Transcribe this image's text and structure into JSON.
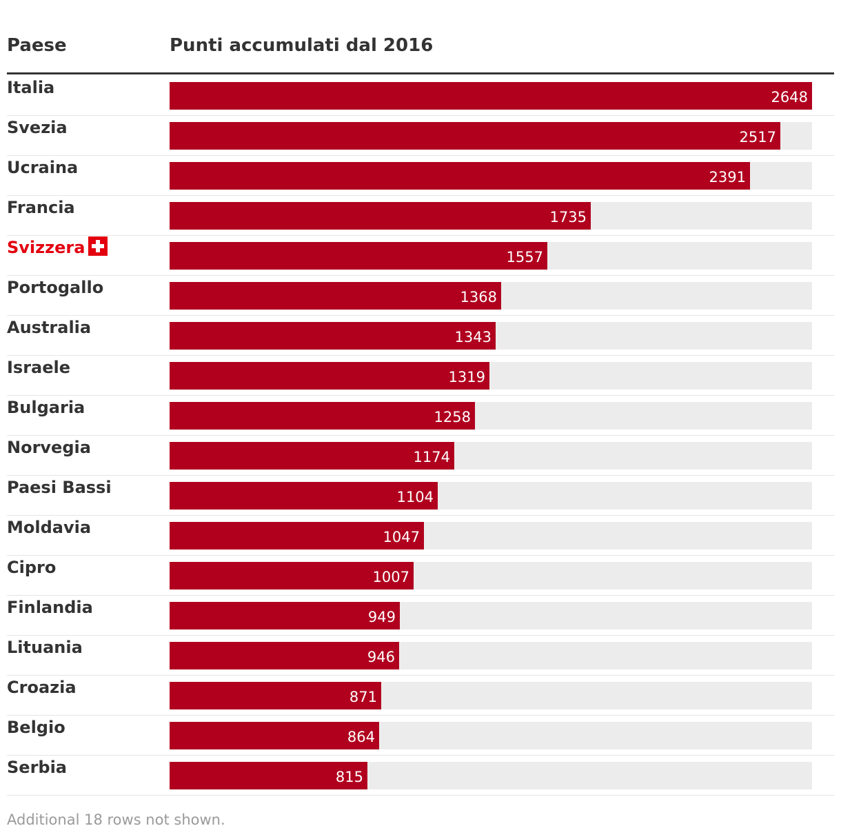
{
  "chart_data": {
    "type": "bar",
    "orientation": "horizontal",
    "columns": {
      "country": "Paese",
      "value": "Punti accumulati dal 2016"
    },
    "xlim": [
      0,
      2648
    ],
    "bar_color": "#b0001e",
    "track_color": "#ececec",
    "highlight_color": "#e3000f",
    "rows": [
      {
        "country": "Italia",
        "value": 2648,
        "label": "2648"
      },
      {
        "country": "Svezia",
        "value": 2517,
        "label": "2517"
      },
      {
        "country": "Ucraina",
        "value": 2391,
        "label": "2391"
      },
      {
        "country": "Francia",
        "value": 1735,
        "label": "1735"
      },
      {
        "country": "Svizzera",
        "value": 1557,
        "label": "1557",
        "highlight": true,
        "icon": "swiss-flag-icon"
      },
      {
        "country": "Portogallo",
        "value": 1368,
        "label": "1368"
      },
      {
        "country": "Australia",
        "value": 1343,
        "label": "1343"
      },
      {
        "country": "Israele",
        "value": 1319,
        "label": "1319"
      },
      {
        "country": "Bulgaria",
        "value": 1258,
        "label": "1258"
      },
      {
        "country": "Norvegia",
        "value": 1174,
        "label": "1174"
      },
      {
        "country": "Paesi Bassi",
        "value": 1104,
        "label": "1104"
      },
      {
        "country": "Moldavia",
        "value": 1047,
        "label": "1047"
      },
      {
        "country": "Cipro",
        "value": 1007,
        "label": "1007"
      },
      {
        "country": "Finlandia",
        "value": 949,
        "label": "949"
      },
      {
        "country": "Lituania",
        "value": 946,
        "label": "946"
      },
      {
        "country": "Croazia",
        "value": 871,
        "label": "871"
      },
      {
        "country": "Belgio",
        "value": 864,
        "label": "864"
      },
      {
        "country": "Serbia",
        "value": 815,
        "label": "815"
      }
    ],
    "footer": "Additional 18 rows not shown."
  }
}
